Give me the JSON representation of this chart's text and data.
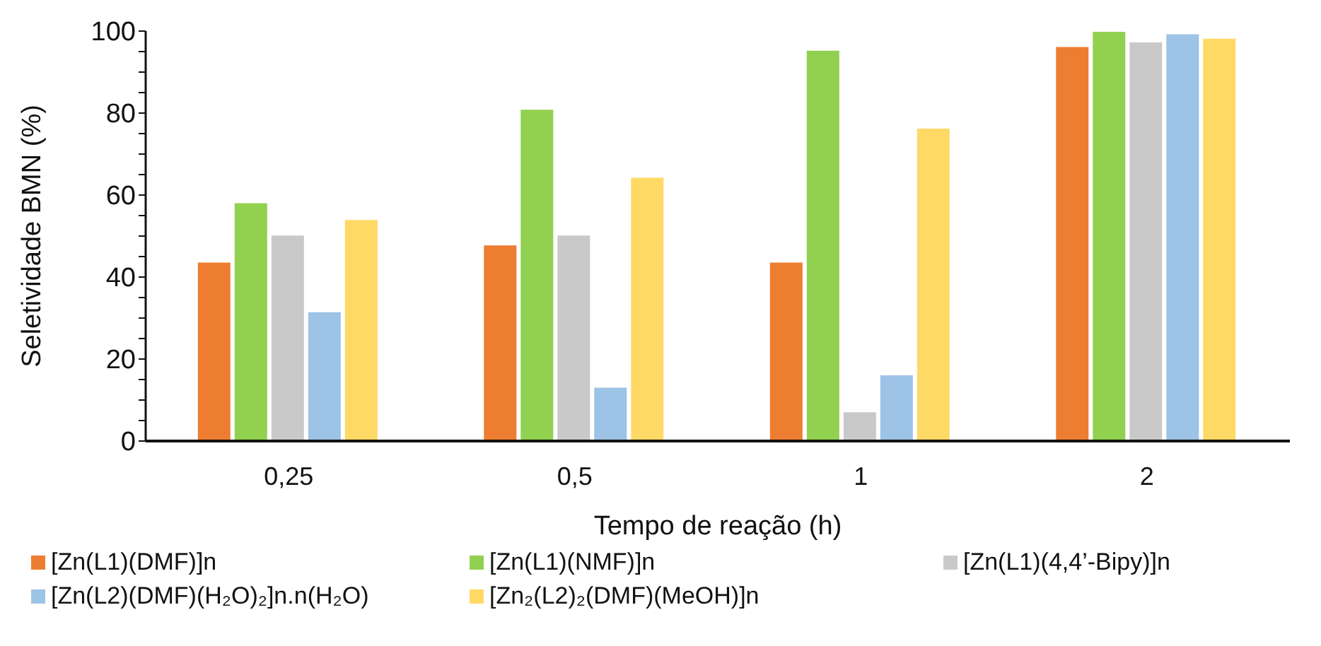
{
  "chart_data": {
    "type": "bar",
    "xlabel": "Tempo de reação (h)",
    "ylabel": "Seletividade BMN (%)",
    "categories": [
      "0,25",
      "0,5",
      "1",
      "2"
    ],
    "series": [
      {
        "name": "[Zn(L1)(DMF)]n",
        "color": "#ed7d31",
        "values": [
          43.7,
          47.9,
          43.7,
          96.3
        ]
      },
      {
        "name": "[Zn(L1)(NMF)]n",
        "color": "#92d050",
        "values": [
          58.2,
          81.0,
          95.4,
          100
        ]
      },
      {
        "name": "[Zn(L1)(4,4’-Bipy)]n",
        "color": "#c9c9c9",
        "values": [
          50.3,
          50.3,
          7.2,
          97.4
        ]
      },
      {
        "name": "[Zn(L2)(DMF)(H₂O)₂]n.n(H₂O)",
        "color": "#9dc3e6",
        "values": [
          31.6,
          13.2,
          16.2,
          99.4
        ]
      },
      {
        "name": "[Zn₂(L2)₂(DMF)(MeOH)]n",
        "color": "#ffd966",
        "values": [
          54.1,
          64.4,
          76.4,
          98.3
        ]
      }
    ],
    "ylim": [
      0,
      100
    ],
    "yticks": [
      0,
      {
        "value": 5,
        "label": null
      },
      {
        "value": 10,
        "label": null
      },
      {
        "value": 15,
        "label": null
      },
      20,
      {
        "value": 25,
        "label": null
      },
      {
        "value": 30,
        "label": null
      },
      {
        "value": 35,
        "label": null
      },
      40,
      {
        "value": 45,
        "label": null
      },
      {
        "value": 50,
        "label": null
      },
      {
        "value": 55,
        "label": null
      },
      60,
      {
        "value": 65,
        "label": null
      },
      {
        "value": 70,
        "label": null
      },
      {
        "value": 75,
        "label": null
      },
      80,
      {
        "value": 85,
        "label": null
      },
      {
        "value": 90,
        "label": null
      },
      {
        "value": 95,
        "label": null
      },
      100
    ],
    "grid": false,
    "legend": "bottom"
  }
}
